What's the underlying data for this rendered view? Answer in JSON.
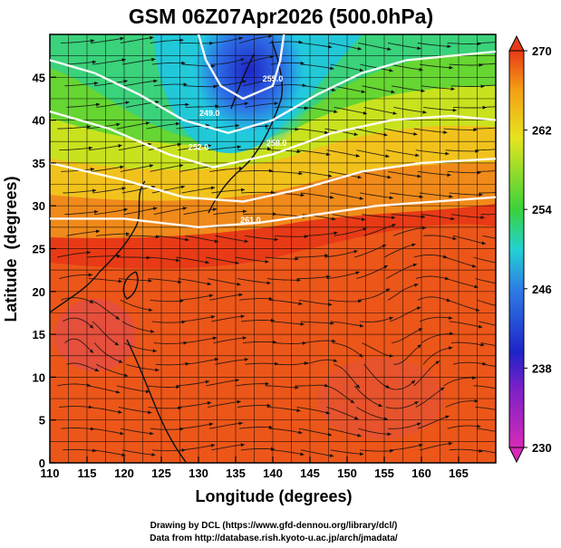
{
  "chart_data": {
    "type": "heatmap",
    "title": "GSM 06Z07Apr2026 (500.0hPa)",
    "xlabel": "Longitude (degrees)",
    "ylabel": "Latitude  (degrees)",
    "xlim": [
      110,
      170
    ],
    "ylim": [
      0,
      50
    ],
    "xticks": [
      110,
      115,
      120,
      125,
      130,
      135,
      140,
      145,
      150,
      155,
      160,
      165
    ],
    "yticks": [
      0,
      5,
      10,
      15,
      20,
      25,
      30,
      35,
      40,
      45
    ],
    "grid": true,
    "colorbar": {
      "label_values": [
        230,
        238,
        246,
        254,
        262,
        270
      ],
      "range": [
        230,
        270
      ],
      "colors": [
        "#d62bb8",
        "#1e24c8",
        "#2e7ee6",
        "#22d2d2",
        "#3ad23a",
        "#e6e41e",
        "#f5a014",
        "#e83a16"
      ]
    },
    "contour_labels": [
      "252.0",
      "249.0",
      "255.0",
      "258.0",
      "261.0"
    ],
    "footer": {
      "line1": "Drawing by DCL (https://www.gfd-dennou.org/library/dcl/)",
      "line2": "Data from http://database.rish.kyoto-u.ac.jp/arch/jmadata/"
    }
  }
}
